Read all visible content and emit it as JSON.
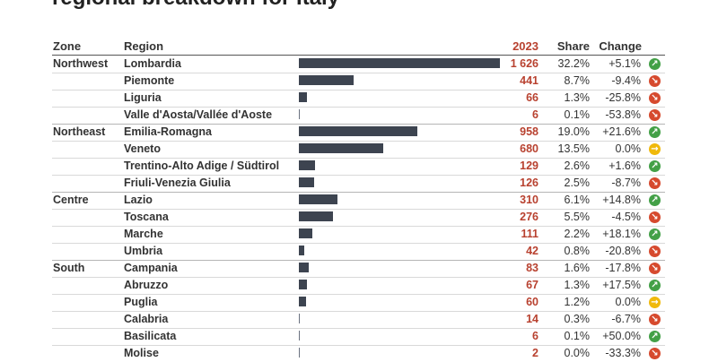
{
  "title": "regional breakdown for Italy",
  "headers": {
    "zone": "Zone",
    "region": "Region",
    "value": "2023",
    "share": "Share",
    "change": "Change"
  },
  "max_value": 1626,
  "colors": {
    "up": "#43a047",
    "down": "#d64a2e",
    "flat": "#f0b90b",
    "value_text": "#b8412f",
    "bar": "#3d4450"
  },
  "rows": [
    {
      "zone": "Northwest",
      "region": "Lombardia",
      "value_label": "1 626",
      "value": 1626,
      "share": "32.2%",
      "change": "+5.1%",
      "trend": "up"
    },
    {
      "zone": "",
      "region": "Piemonte",
      "value_label": "441",
      "value": 441,
      "share": "8.7%",
      "change": "-9.4%",
      "trend": "down"
    },
    {
      "zone": "",
      "region": "Liguria",
      "value_label": "66",
      "value": 66,
      "share": "1.3%",
      "change": "-25.8%",
      "trend": "down"
    },
    {
      "zone": "",
      "region": "Valle d'Aosta/Vallée d'Aoste",
      "value_label": "6",
      "value": 6,
      "share": "0.1%",
      "change": "-53.8%",
      "trend": "down"
    },
    {
      "zone": "Northeast",
      "region": "Emilia-Romagna",
      "value_label": "958",
      "value": 958,
      "share": "19.0%",
      "change": "+21.6%",
      "trend": "up"
    },
    {
      "zone": "",
      "region": "Veneto",
      "value_label": "680",
      "value": 680,
      "share": "13.5%",
      "change": "0.0%",
      "trend": "flat"
    },
    {
      "zone": "",
      "region": "Trentino-Alto Adige / Südtirol",
      "value_label": "129",
      "value": 129,
      "share": "2.6%",
      "change": "+1.6%",
      "trend": "up"
    },
    {
      "zone": "",
      "region": "Friuli-Venezia Giulia",
      "value_label": "126",
      "value": 126,
      "share": "2.5%",
      "change": "-8.7%",
      "trend": "down"
    },
    {
      "zone": "Centre",
      "region": "Lazio",
      "value_label": "310",
      "value": 310,
      "share": "6.1%",
      "change": "+14.8%",
      "trend": "up"
    },
    {
      "zone": "",
      "region": "Toscana",
      "value_label": "276",
      "value": 276,
      "share": "5.5%",
      "change": "-4.5%",
      "trend": "down"
    },
    {
      "zone": "",
      "region": "Marche",
      "value_label": "111",
      "value": 111,
      "share": "2.2%",
      "change": "+18.1%",
      "trend": "up"
    },
    {
      "zone": "",
      "region": "Umbria",
      "value_label": "42",
      "value": 42,
      "share": "0.8%",
      "change": "-20.8%",
      "trend": "down"
    },
    {
      "zone": "South",
      "region": "Campania",
      "value_label": "83",
      "value": 83,
      "share": "1.6%",
      "change": "-17.8%",
      "trend": "down"
    },
    {
      "zone": "",
      "region": "Abruzzo",
      "value_label": "67",
      "value": 67,
      "share": "1.3%",
      "change": "+17.5%",
      "trend": "up"
    },
    {
      "zone": "",
      "region": "Puglia",
      "value_label": "60",
      "value": 60,
      "share": "1.2%",
      "change": "0.0%",
      "trend": "flat"
    },
    {
      "zone": "",
      "region": "Calabria",
      "value_label": "14",
      "value": 14,
      "share": "0.3%",
      "change": "-6.7%",
      "trend": "down"
    },
    {
      "zone": "",
      "region": "Basilicata",
      "value_label": "6",
      "value": 6,
      "share": "0.1%",
      "change": "+50.0%",
      "trend": "up"
    },
    {
      "zone": "",
      "region": "Molise",
      "value_label": "2",
      "value": 2,
      "share": "0.0%",
      "change": "-33.3%",
      "trend": "down"
    }
  ]
}
